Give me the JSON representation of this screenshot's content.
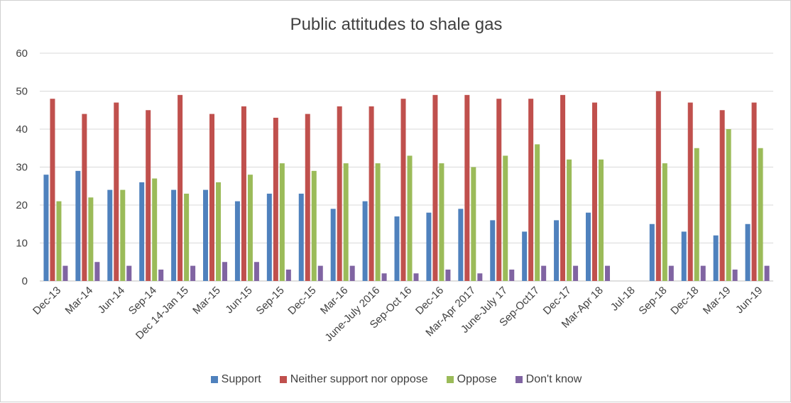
{
  "chart_data": {
    "type": "bar",
    "title": "Public attitudes to shale gas",
    "xlabel": "",
    "ylabel": "",
    "ylim": [
      0,
      60
    ],
    "yticks": [
      0,
      10,
      20,
      30,
      40,
      50,
      60
    ],
    "grid": true,
    "legend_position": "bottom",
    "categories": [
      "Dec-13",
      "Mar-14",
      "Jun-14",
      "Sep-14",
      "Dec 14-Jan 15",
      "Mar-15",
      "Jun-15",
      "Sep-15",
      "Dec-15",
      "Mar-16",
      "June-July 2016",
      "Sep-Oct 16",
      "Dec-16",
      "Mar-Apr 2017",
      "June-July 17",
      "Sep-Oct17",
      "Dec-17",
      "Mar-Apr 18",
      "Jul-18",
      "Sep-18",
      "Dec-18",
      "Mar-19",
      "Jun-19"
    ],
    "series": [
      {
        "name": "Support",
        "color": "#4f81bd",
        "values": [
          28,
          29,
          24,
          26,
          24,
          24,
          21,
          23,
          23,
          19,
          21,
          17,
          18,
          19,
          16,
          13,
          16,
          18,
          null,
          15,
          13,
          12,
          15
        ]
      },
      {
        "name": "Neither support nor oppose",
        "color": "#c0504d",
        "values": [
          48,
          44,
          47,
          45,
          49,
          44,
          46,
          43,
          44,
          46,
          46,
          48,
          49,
          49,
          48,
          48,
          49,
          47,
          null,
          50,
          47,
          45,
          47
        ]
      },
      {
        "name": "Oppose",
        "color": "#9bbb59",
        "values": [
          21,
          22,
          24,
          27,
          23,
          26,
          28,
          31,
          29,
          31,
          31,
          33,
          31,
          30,
          33,
          36,
          32,
          32,
          null,
          31,
          35,
          40,
          35
        ]
      },
      {
        "name": "Don't know",
        "color": "#8064a2",
        "values": [
          4,
          5,
          4,
          3,
          4,
          5,
          5,
          3,
          4,
          4,
          2,
          2,
          3,
          2,
          3,
          4,
          4,
          4,
          null,
          4,
          4,
          3,
          4
        ]
      }
    ]
  }
}
